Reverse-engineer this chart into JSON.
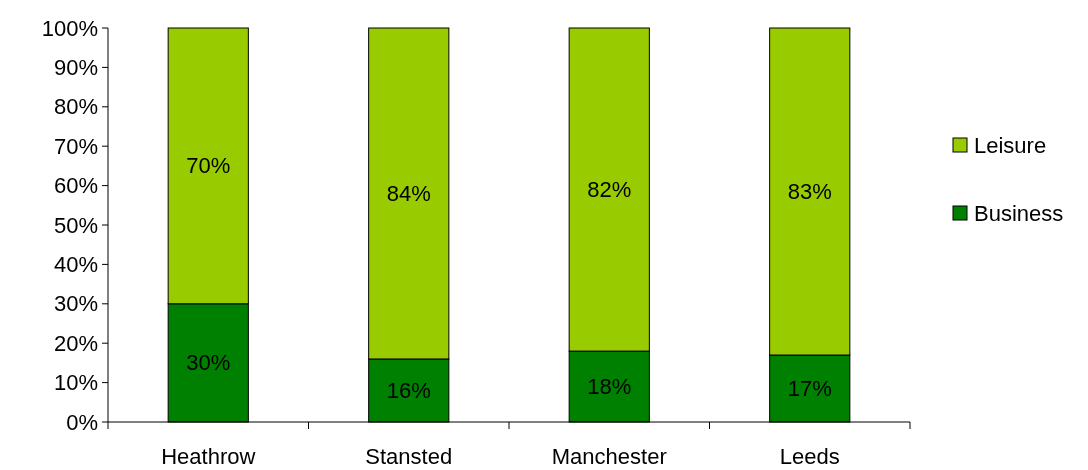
{
  "chart_data": {
    "type": "bar",
    "stacked": true,
    "categories": [
      "Heathrow",
      "Stansted",
      "Manchester",
      "Leeds"
    ],
    "series": [
      {
        "name": "Business",
        "color": "#008000",
        "values": [
          30,
          16,
          18,
          17
        ],
        "value_labels": [
          "30%",
          "16%",
          "18%",
          "17%"
        ]
      },
      {
        "name": "Leisure",
        "color": "#99cc00",
        "values": [
          70,
          84,
          82,
          83
        ],
        "value_labels": [
          "70%",
          "84%",
          "82%",
          "83%"
        ]
      }
    ],
    "ylim": [
      0,
      100
    ],
    "yticks": [
      {
        "value": 0,
        "label": "0%"
      },
      {
        "value": 10,
        "label": "10%"
      },
      {
        "value": 20,
        "label": "20%"
      },
      {
        "value": 30,
        "label": "30%"
      },
      {
        "value": 40,
        "label": "40%"
      },
      {
        "value": 50,
        "label": "50%"
      },
      {
        "value": 60,
        "label": "60%"
      },
      {
        "value": 70,
        "label": "70%"
      },
      {
        "value": 80,
        "label": "80%"
      },
      {
        "value": 90,
        "label": "90%"
      },
      {
        "value": 100,
        "label": "100%"
      }
    ],
    "grid": false,
    "legend": "right"
  }
}
